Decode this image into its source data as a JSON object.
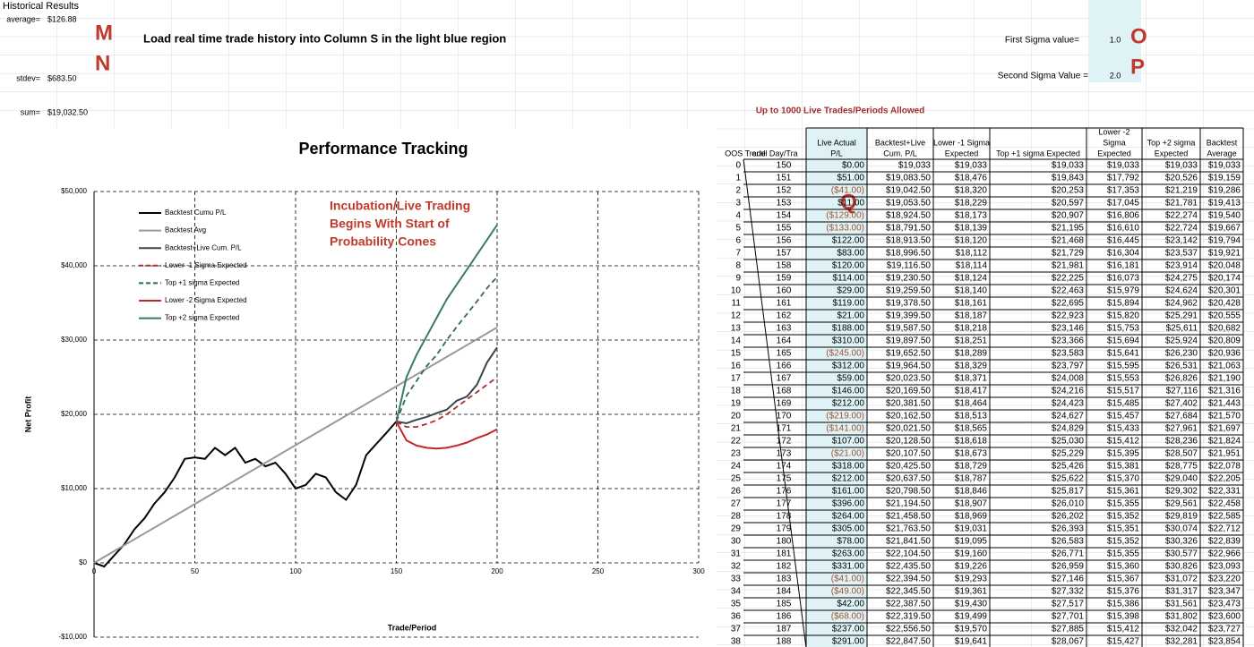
{
  "sheet": {
    "title": "Historical Results",
    "stats": [
      {
        "label": "average=",
        "value": "$126.88"
      },
      {
        "label": "stdev=",
        "value": "$683.50"
      },
      {
        "label": "sum=",
        "value": "$19,032.50"
      }
    ],
    "markers": [
      "M",
      "N",
      "O",
      "P",
      "Q"
    ],
    "instruction": "Load real time trade history into Column S in the light blue region",
    "first_sigma_label": "First Sigma value=",
    "first_sigma": "1.0",
    "second_sigma_label": "Second Sigma Value =",
    "second_sigma": "2.0",
    "limit_note": "Up to 1000 Live Trades/Periods Allowed"
  },
  "table": {
    "headers": [
      [
        "OOS Trade"
      ],
      [
        "erall Day/Tra"
      ],
      [
        "Live Actual",
        "P/L"
      ],
      [
        "Backtest+Live",
        "Cum. P/L"
      ],
      [
        "Lower -1 Sigma",
        "Expected"
      ],
      [
        "Top +1 sigma Expected"
      ],
      [
        "Lower -2",
        "Sigma",
        "Expected"
      ],
      [
        "Top +2 sigma",
        "Expected"
      ],
      [
        "Backtest",
        "Average"
      ]
    ],
    "rows": [
      [
        0,
        150,
        "$0.00",
        "$19,033",
        "$19,033",
        "$19,033",
        "$19,033",
        "$19,033",
        "$19,033"
      ],
      [
        1,
        151,
        "$51.00",
        "$19,083.50",
        "$18,476",
        "$19,843",
        "$17,792",
        "$20,526",
        "$19,159"
      ],
      [
        2,
        152,
        "($41.00)",
        "$19,042.50",
        "$18,320",
        "$20,253",
        "$17,353",
        "$21,219",
        "$19,286"
      ],
      [
        3,
        153,
        "$11.00",
        "$19,053.50",
        "$18,229",
        "$20,597",
        "$17,045",
        "$21,781",
        "$19,413"
      ],
      [
        4,
        154,
        "($129.00)",
        "$18,924.50",
        "$18,173",
        "$20,907",
        "$16,806",
        "$22,274",
        "$19,540"
      ],
      [
        5,
        155,
        "($133.00)",
        "$18,791.50",
        "$18,139",
        "$21,195",
        "$16,610",
        "$22,724",
        "$19,667"
      ],
      [
        6,
        156,
        "$122.00",
        "$18,913.50",
        "$18,120",
        "$21,468",
        "$16,445",
        "$23,142",
        "$19,794"
      ],
      [
        7,
        157,
        "$83.00",
        "$18,996.50",
        "$18,112",
        "$21,729",
        "$16,304",
        "$23,537",
        "$19,921"
      ],
      [
        8,
        158,
        "$120.00",
        "$19,116.50",
        "$18,114",
        "$21,981",
        "$16,181",
        "$23,914",
        "$20,048"
      ],
      [
        9,
        159,
        "$114.00",
        "$19,230.50",
        "$18,124",
        "$22,225",
        "$16,073",
        "$24,275",
        "$20,174"
      ],
      [
        10,
        160,
        "$29.00",
        "$19,259.50",
        "$18,140",
        "$22,463",
        "$15,979",
        "$24,624",
        "$20,301"
      ],
      [
        11,
        161,
        "$119.00",
        "$19,378.50",
        "$18,161",
        "$22,695",
        "$15,894",
        "$24,962",
        "$20,428"
      ],
      [
        12,
        162,
        "$21.00",
        "$19,399.50",
        "$18,187",
        "$22,923",
        "$15,820",
        "$25,291",
        "$20,555"
      ],
      [
        13,
        163,
        "$188.00",
        "$19,587.50",
        "$18,218",
        "$23,146",
        "$15,753",
        "$25,611",
        "$20,682"
      ],
      [
        14,
        164,
        "$310.00",
        "$19,897.50",
        "$18,251",
        "$23,366",
        "$15,694",
        "$25,924",
        "$20,809"
      ],
      [
        15,
        165,
        "($245.00)",
        "$19,652.50",
        "$18,289",
        "$23,583",
        "$15,641",
        "$26,230",
        "$20,936"
      ],
      [
        16,
        166,
        "$312.00",
        "$19,964.50",
        "$18,329",
        "$23,797",
        "$15,595",
        "$26,531",
        "$21,063"
      ],
      [
        17,
        167,
        "$59.00",
        "$20,023.50",
        "$18,371",
        "$24,008",
        "$15,553",
        "$26,826",
        "$21,190"
      ],
      [
        18,
        168,
        "$146.00",
        "$20,169.50",
        "$18,417",
        "$24,216",
        "$15,517",
        "$27,116",
        "$21,316"
      ],
      [
        19,
        169,
        "$212.00",
        "$20,381.50",
        "$18,464",
        "$24,423",
        "$15,485",
        "$27,402",
        "$21,443"
      ],
      [
        20,
        170,
        "($219.00)",
        "$20,162.50",
        "$18,513",
        "$24,627",
        "$15,457",
        "$27,684",
        "$21,570"
      ],
      [
        21,
        171,
        "($141.00)",
        "$20,021.50",
        "$18,565",
        "$24,829",
        "$15,433",
        "$27,961",
        "$21,697"
      ],
      [
        22,
        172,
        "$107.00",
        "$20,128.50",
        "$18,618",
        "$25,030",
        "$15,412",
        "$28,236",
        "$21,824"
      ],
      [
        23,
        173,
        "($21.00)",
        "$20,107.50",
        "$18,673",
        "$25,229",
        "$15,395",
        "$28,507",
        "$21,951"
      ],
      [
        24,
        174,
        "$318.00",
        "$20,425.50",
        "$18,729",
        "$25,426",
        "$15,381",
        "$28,775",
        "$22,078"
      ],
      [
        25,
        175,
        "$212.00",
        "$20,637.50",
        "$18,787",
        "$25,622",
        "$15,370",
        "$29,040",
        "$22,205"
      ],
      [
        26,
        176,
        "$161.00",
        "$20,798.50",
        "$18,846",
        "$25,817",
        "$15,361",
        "$29,302",
        "$22,331"
      ],
      [
        27,
        177,
        "$396.00",
        "$21,194.50",
        "$18,907",
        "$26,010",
        "$15,355",
        "$29,561",
        "$22,458"
      ],
      [
        28,
        178,
        "$264.00",
        "$21,458.50",
        "$18,969",
        "$26,202",
        "$15,352",
        "$29,819",
        "$22,585"
      ],
      [
        29,
        179,
        "$305.00",
        "$21,763.50",
        "$19,031",
        "$26,393",
        "$15,351",
        "$30,074",
        "$22,712"
      ],
      [
        30,
        180,
        "$78.00",
        "$21,841.50",
        "$19,095",
        "$26,583",
        "$15,352",
        "$30,326",
        "$22,839"
      ],
      [
        31,
        181,
        "$263.00",
        "$22,104.50",
        "$19,160",
        "$26,771",
        "$15,355",
        "$30,577",
        "$22,966"
      ],
      [
        32,
        182,
        "$331.00",
        "$22,435.50",
        "$19,226",
        "$26,959",
        "$15,360",
        "$30,826",
        "$23,093"
      ],
      [
        33,
        183,
        "($41.00)",
        "$22,394.50",
        "$19,293",
        "$27,146",
        "$15,367",
        "$31,072",
        "$23,220"
      ],
      [
        34,
        184,
        "($49.00)",
        "$22,345.50",
        "$19,361",
        "$27,332",
        "$15,376",
        "$31,317",
        "$23,347"
      ],
      [
        35,
        185,
        "$42.00",
        "$22,387.50",
        "$19,430",
        "$27,517",
        "$15,386",
        "$31,561",
        "$23,473"
      ],
      [
        36,
        186,
        "($68.00)",
        "$22,319.50",
        "$19,499",
        "$27,701",
        "$15,398",
        "$31,802",
        "$23,600"
      ],
      [
        37,
        187,
        "$237.00",
        "$22,556.50",
        "$19,570",
        "$27,885",
        "$15,412",
        "$32,042",
        "$23,727"
      ],
      [
        38,
        188,
        "$291.00",
        "$22,847.50",
        "$19,641",
        "$28,067",
        "$15,427",
        "$32,281",
        "$23,854"
      ]
    ]
  },
  "chart_data": {
    "type": "line",
    "title": "Performance Tracking",
    "xlabel": "Trade/Period",
    "ylabel": "Net Profit",
    "annotation": [
      "Incubation/Live Trading",
      "Begins With Start of",
      "Probability Cones"
    ],
    "xlim": [
      0,
      300
    ],
    "xticks": [
      0,
      50,
      100,
      150,
      200,
      250,
      300
    ],
    "ylim": [
      -10000,
      50000
    ],
    "yticks": [
      {
        "value": -10000,
        "label": "-$10,000"
      },
      {
        "value": 0,
        "label": "$0"
      },
      {
        "value": 10000,
        "label": "$10,000"
      },
      {
        "value": 20000,
        "label": "$20,000"
      },
      {
        "value": 30000,
        "label": "$30,000"
      },
      {
        "value": 40000,
        "label": "$40,000"
      },
      {
        "value": 50000,
        "label": "$50,000"
      }
    ],
    "grid": true,
    "series": [
      {
        "name": "Backtest Cumu P/L",
        "color": "#000000",
        "dash": false,
        "x": [
          0,
          5,
          10,
          15,
          20,
          25,
          30,
          35,
          40,
          45,
          50,
          55,
          60,
          65,
          70,
          75,
          80,
          85,
          90,
          95,
          100,
          105,
          110,
          115,
          120,
          125,
          130,
          135,
          140,
          145,
          150
        ],
        "values": [
          0,
          -500,
          1000,
          2500,
          4500,
          6000,
          8000,
          9500,
          11500,
          14000,
          14200,
          14000,
          15500,
          14500,
          15500,
          13500,
          14000,
          13000,
          13500,
          12000,
          10000,
          10500,
          12000,
          11500,
          9500,
          8500,
          10500,
          14500,
          16000,
          17500,
          19033
        ]
      },
      {
        "name": "Backtest Avg",
        "color": "#999999",
        "dash": false,
        "x": [
          0,
          200
        ],
        "values": [
          0,
          31700
        ]
      },
      {
        "name": "Backtest+Live Cum. P/L",
        "color": "#37474a",
        "dash": false,
        "x": [
          150,
          155,
          160,
          165,
          170,
          175,
          180,
          185,
          190,
          195,
          200
        ],
        "values": [
          19033,
          18791.5,
          19259.5,
          19652.5,
          20162.5,
          20637.5,
          21841.5,
          22387.5,
          24000,
          27000,
          29000
        ]
      },
      {
        "name": "Lower -1 Sigma Expected",
        "color": "#b22a2a",
        "dash": true,
        "x": [
          150,
          155,
          160,
          165,
          170,
          175,
          180,
          185,
          190,
          195,
          200
        ],
        "values": [
          19000,
          18300,
          18300,
          18700,
          19200,
          20000,
          21000,
          22000,
          23000,
          24000,
          25000
        ]
      },
      {
        "name": "Top +1 sigma Expected",
        "color": "#2f6b5b",
        "dash": true,
        "x": [
          150,
          155,
          160,
          165,
          170,
          175,
          180,
          185,
          190,
          195,
          200
        ],
        "values": [
          19000,
          22500,
          24500,
          26500,
          28000,
          30000,
          31800,
          33500,
          35200,
          37000,
          38500
        ]
      },
      {
        "name": "Lower -2 Sigma Expected",
        "color": "#c0282a",
        "dash": false,
        "x": [
          150,
          155,
          160,
          165,
          170,
          175,
          180,
          185,
          190,
          195,
          200
        ],
        "values": [
          19000,
          16500,
          15800,
          15500,
          15400,
          15500,
          15800,
          16200,
          16800,
          17300,
          18000
        ]
      },
      {
        "name": "Top +2 sigma Expected",
        "color": "#3a7a6a",
        "dash": false,
        "x": [
          150,
          155,
          160,
          165,
          170,
          175,
          180,
          185,
          190,
          195,
          200
        ],
        "values": [
          19000,
          25000,
          28000,
          30500,
          33000,
          35500,
          37500,
          39500,
          41500,
          43500,
          45500
        ]
      }
    ]
  }
}
